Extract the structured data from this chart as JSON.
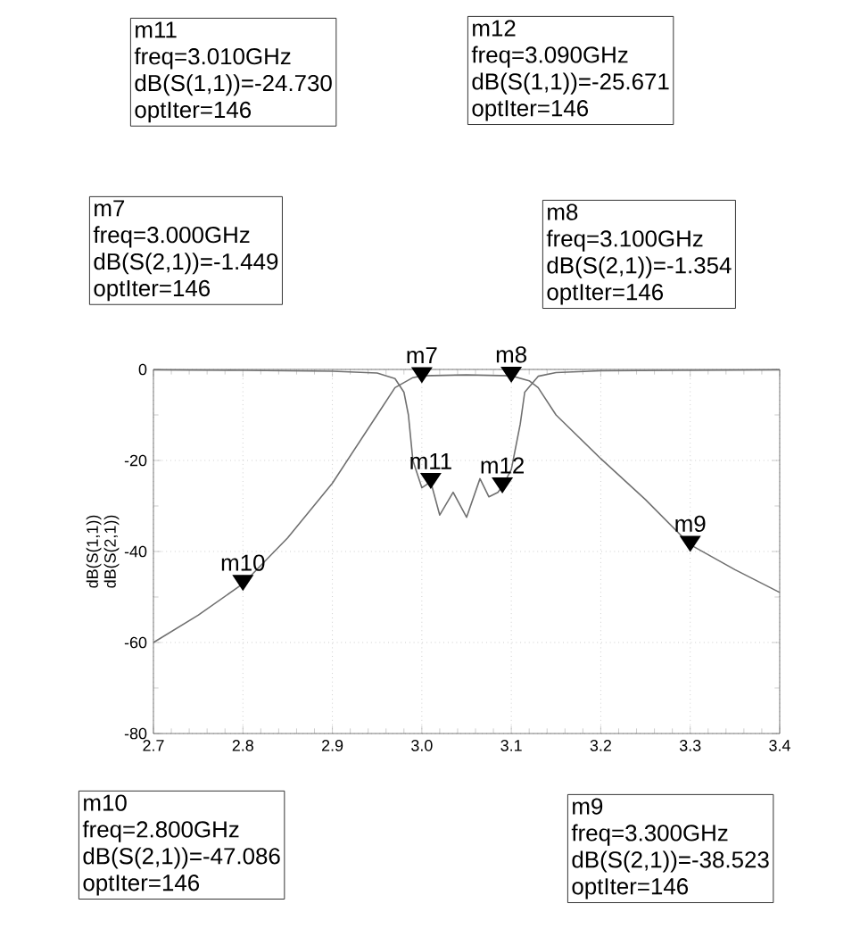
{
  "chart_data": {
    "type": "line",
    "ylabel": "dB(S(1,1)) dB(S(2,1))",
    "xlim": [
      2.7,
      3.4
    ],
    "ylim": [
      -80,
      0
    ],
    "xticks": [
      {
        "value": 2.7,
        "label": "2.7"
      },
      {
        "value": 2.8,
        "label": "2.8"
      },
      {
        "value": 2.9,
        "label": "2.9"
      },
      {
        "value": 3.0,
        "label": "3.0"
      },
      {
        "value": 3.1,
        "label": "3.1"
      },
      {
        "value": 3.2,
        "label": "3.2"
      },
      {
        "value": 3.3,
        "label": "3.3"
      },
      {
        "value": 3.4,
        "label": "3.4"
      }
    ],
    "yticks": [
      -80,
      -60,
      -40,
      -20,
      0
    ],
    "grid": true,
    "series": [
      {
        "color": "#707070",
        "x": [
          2.7,
          2.8,
          2.9,
          2.95,
          2.97,
          2.98,
          2.985,
          2.99,
          3.0,
          3.01,
          3.02,
          3.035,
          3.05,
          3.065,
          3.075,
          3.085,
          3.09,
          3.1,
          3.11,
          3.115,
          3.13,
          3.15,
          3.2,
          3.3,
          3.4
        ],
        "values": [
          -0.1,
          -0.2,
          -0.4,
          -0.8,
          -2,
          -5,
          -10,
          -20,
          -26,
          -24.7,
          -32,
          -27,
          -32.5,
          -24,
          -28,
          -27,
          -25.7,
          -22,
          -12,
          -5,
          -1.5,
          -0.7,
          -0.3,
          -0.2,
          -0.1
        ]
      },
      {
        "color": "#707070",
        "x": [
          2.7,
          2.75,
          2.8,
          2.85,
          2.9,
          2.95,
          2.97,
          2.99,
          3.0,
          3.05,
          3.1,
          3.12,
          3.13,
          3.15,
          3.2,
          3.25,
          3.3,
          3.35,
          3.4
        ],
        "values": [
          -60,
          -54,
          -47.1,
          -37,
          -25,
          -10,
          -4,
          -1.8,
          -1.4,
          -1.2,
          -1.4,
          -2.5,
          -4,
          -10,
          -19.6,
          -28.6,
          -38.5,
          -44,
          -49
        ]
      }
    ],
    "annotations": [
      {
        "text": "m11",
        "x": 3.01,
        "y": -24.73
      },
      {
        "text": "m12",
        "x": 3.09,
        "y": -25.671
      },
      {
        "text": "m7",
        "x": 3.0,
        "y": -1.449
      },
      {
        "text": "m8",
        "x": 3.1,
        "y": -1.354
      },
      {
        "text": "m10",
        "x": 2.8,
        "y": -47.086
      },
      {
        "text": "m9",
        "x": 3.3,
        "y": -38.523
      },
      "m11",
      "freq=3.010GHz",
      "dB(S(1,1))=-24.730",
      "optIter=146",
      "m12",
      "freq=3.090GHz",
      "dB(S(1,1))=-25.671",
      "optIter=146",
      "m7",
      "freq=3.000GHz",
      "dB(S(2,1))=-1.449",
      "optIter=146",
      "m8",
      "freq=3.100GHz",
      "dB(S(2,1))=-1.354",
      "optIter=146",
      "m10",
      "freq=2.800GHz",
      "dB(S(2,1))=-47.086",
      "optIter=146",
      "m9",
      "freq=3.300GHz",
      "dB(S(2,1))=-38.523",
      "optIter=146"
    ]
  }
}
